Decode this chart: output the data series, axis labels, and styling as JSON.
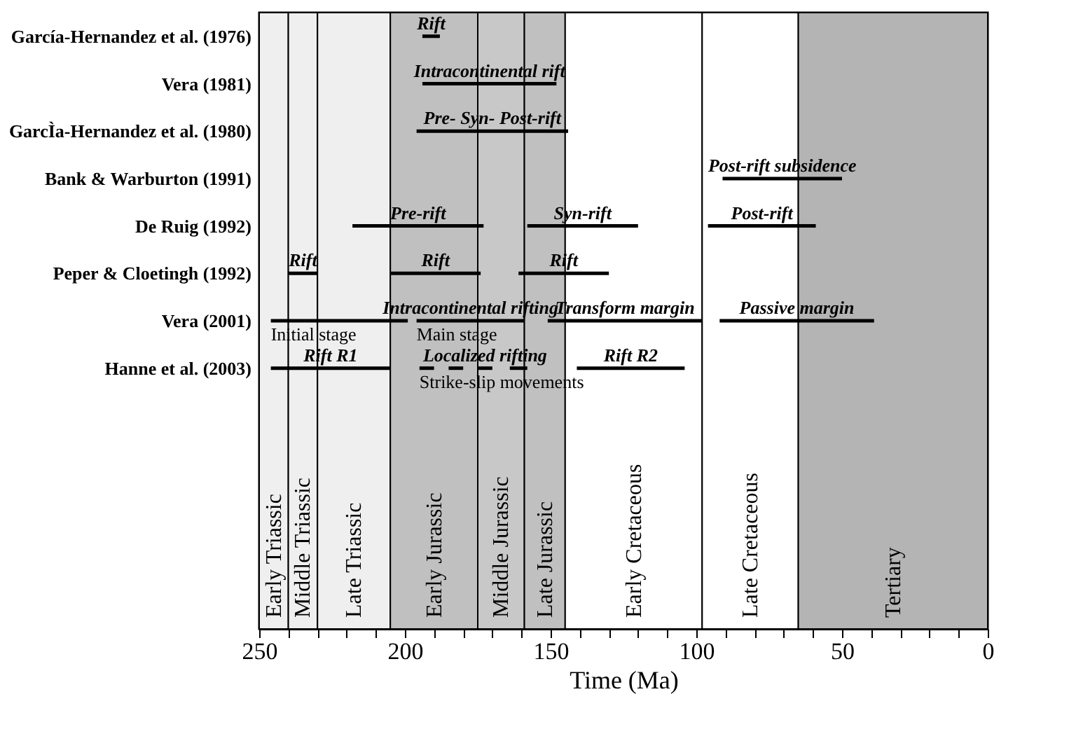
{
  "chart_data": {
    "type": "bar",
    "orientation": "horizontal",
    "xlabel": "Time (Ma)",
    "categories": [
      "García-Hernandez et al. (1976)",
      "Vera (1981)",
      "GarcÌa-Hernandez et al. (1980)",
      "Bank & Warburton (1991)",
      "De Ruig (1992)",
      "Peper & Cloetingh (1992)",
      "Vera (2001)",
      "Hanne et al. (2003)",
      null,
      null,
      null,
      null,
      null
    ],
    "xlim": [
      250,
      0
    ],
    "xticks": [
      0,
      {
        "value": 10,
        "label": null
      },
      {
        "value": 20,
        "label": null
      },
      {
        "value": 30,
        "label": null
      },
      {
        "value": 40,
        "label": null
      },
      50,
      {
        "value": 60,
        "label": null
      },
      {
        "value": 70,
        "label": null
      },
      {
        "value": 80,
        "label": null
      },
      {
        "value": 90,
        "label": null
      },
      100,
      {
        "value": 110,
        "label": null
      },
      {
        "value": 120,
        "label": null
      },
      {
        "value": 130,
        "label": null
      },
      {
        "value": 140,
        "label": null
      },
      150,
      {
        "value": 160,
        "label": null
      },
      {
        "value": 170,
        "label": null
      },
      {
        "value": 180,
        "label": null
      },
      {
        "value": 190,
        "label": null
      },
      200,
      {
        "value": 210,
        "label": null
      },
      {
        "value": 220,
        "label": null
      },
      {
        "value": 230,
        "label": null
      },
      {
        "value": 240,
        "label": null
      },
      250
    ],
    "series": [
      {
        "color": "#000000",
        "base": [
          188,
          148,
          144,
          50,
          173,
          230,
          199,
          205,
          null,
          null,
          null,
          null,
          null
        ],
        "values": [
          6,
          46,
          52,
          41,
          45,
          10,
          47,
          41,
          null,
          null,
          null,
          null,
          null
        ],
        "value_labels": [
          "Rift",
          "Intracontinental rift",
          "Pre- Syn- Post-rift",
          "Post-rift subsidence",
          "Pre-rift",
          "Rift",
          null,
          "Rift R1",
          null,
          null,
          null,
          null,
          null
        ]
      },
      {
        "color": "#000000",
        "base": [
          null,
          null,
          null,
          null,
          120,
          174,
          159,
          190,
          null,
          null,
          null,
          null,
          null
        ],
        "values": [
          null,
          null,
          null,
          null,
          38,
          31,
          37,
          5,
          null,
          null,
          null,
          null,
          null
        ],
        "value_labels": [
          null,
          null,
          null,
          null,
          "Syn-rift",
          "Rift",
          "Intracontinental rifting",
          null,
          null,
          null,
          null,
          null,
          null
        ]
      },
      {
        "color": "#000000",
        "base": [
          null,
          null,
          null,
          null,
          59,
          130,
          98,
          180,
          null,
          null,
          null,
          null,
          null
        ],
        "values": [
          null,
          null,
          null,
          null,
          37,
          31,
          53,
          5,
          null,
          null,
          null,
          null,
          null
        ],
        "value_labels": [
          null,
          null,
          null,
          null,
          "Post-rift",
          "Rift",
          "Transform margin",
          null,
          null,
          null,
          null,
          null,
          null
        ]
      },
      {
        "color": "#000000",
        "base": [
          null,
          null,
          null,
          null,
          null,
          null,
          39,
          170,
          null,
          null,
          null,
          null,
          null
        ],
        "values": [
          null,
          null,
          null,
          null,
          null,
          null,
          53,
          5,
          null,
          null,
          null,
          null,
          null
        ],
        "value_labels": [
          null,
          null,
          null,
          null,
          null,
          null,
          "Passive margin",
          "Localized rifting",
          null,
          null,
          null,
          null,
          null
        ]
      },
      {
        "color": "#000000",
        "base": [
          null,
          null,
          null,
          null,
          null,
          null,
          null,
          158,
          null,
          null,
          null,
          null,
          null
        ],
        "values": [
          null,
          null,
          null,
          null,
          null,
          null,
          null,
          6,
          null,
          null,
          null,
          null,
          null
        ],
        "value_labels": [
          null,
          null,
          null,
          null,
          null,
          null,
          null,
          null,
          null,
          null,
          null,
          null,
          null
        ]
      },
      {
        "color": "#000000",
        "base": [
          null,
          null,
          null,
          null,
          null,
          null,
          null,
          104,
          null,
          null,
          null,
          null,
          null
        ],
        "values": [
          null,
          null,
          null,
          null,
          null,
          null,
          null,
          37,
          null,
          null,
          null,
          null,
          null
        ],
        "value_labels": [
          null,
          null,
          null,
          null,
          null,
          null,
          null,
          "Rift R2",
          null,
          null,
          null,
          null,
          null
        ]
      }
    ],
    "bands": [
      {
        "axis": "x",
        "from": 250,
        "to": 240,
        "label": "Early Triassic",
        "color": "#efefef"
      },
      {
        "axis": "x",
        "from": 240,
        "to": 230,
        "label": "Middle Triassic",
        "color": "#efefef"
      },
      {
        "axis": "x",
        "from": 230,
        "to": 205,
        "label": "Late Triassic",
        "color": "#efefef"
      },
      {
        "axis": "x",
        "from": 205,
        "to": 175,
        "label": "Early Jurassic",
        "color": "#c0c0c0"
      },
      {
        "axis": "x",
        "from": 175,
        "to": 159,
        "label": "Middle Jurassic",
        "color": "#c8c8c8"
      },
      {
        "axis": "x",
        "from": 159,
        "to": 145,
        "label": "Late Jurassic",
        "color": "#c0c0c0"
      },
      {
        "axis": "x",
        "from": 145,
        "to": 98,
        "label": "Early Cretaceous",
        "color": "#ffffff"
      },
      {
        "axis": "x",
        "from": 98,
        "to": 65,
        "label": "Late Cretaceous",
        "color": "#ffffff"
      },
      {
        "axis": "x",
        "from": 65,
        "to": 0,
        "label": "Tertiary",
        "color": "#b4b4b4"
      }
    ],
    "annotations": [
      {
        "text": "Initial stage",
        "x": 246,
        "y": "Vera (2001)"
      },
      {
        "text": "Main stage",
        "x": 196,
        "y": "Vera (2001)"
      },
      {
        "text": "Strike-slip movements",
        "x": 195,
        "y": "Hanne et al. (2003)"
      }
    ]
  }
}
